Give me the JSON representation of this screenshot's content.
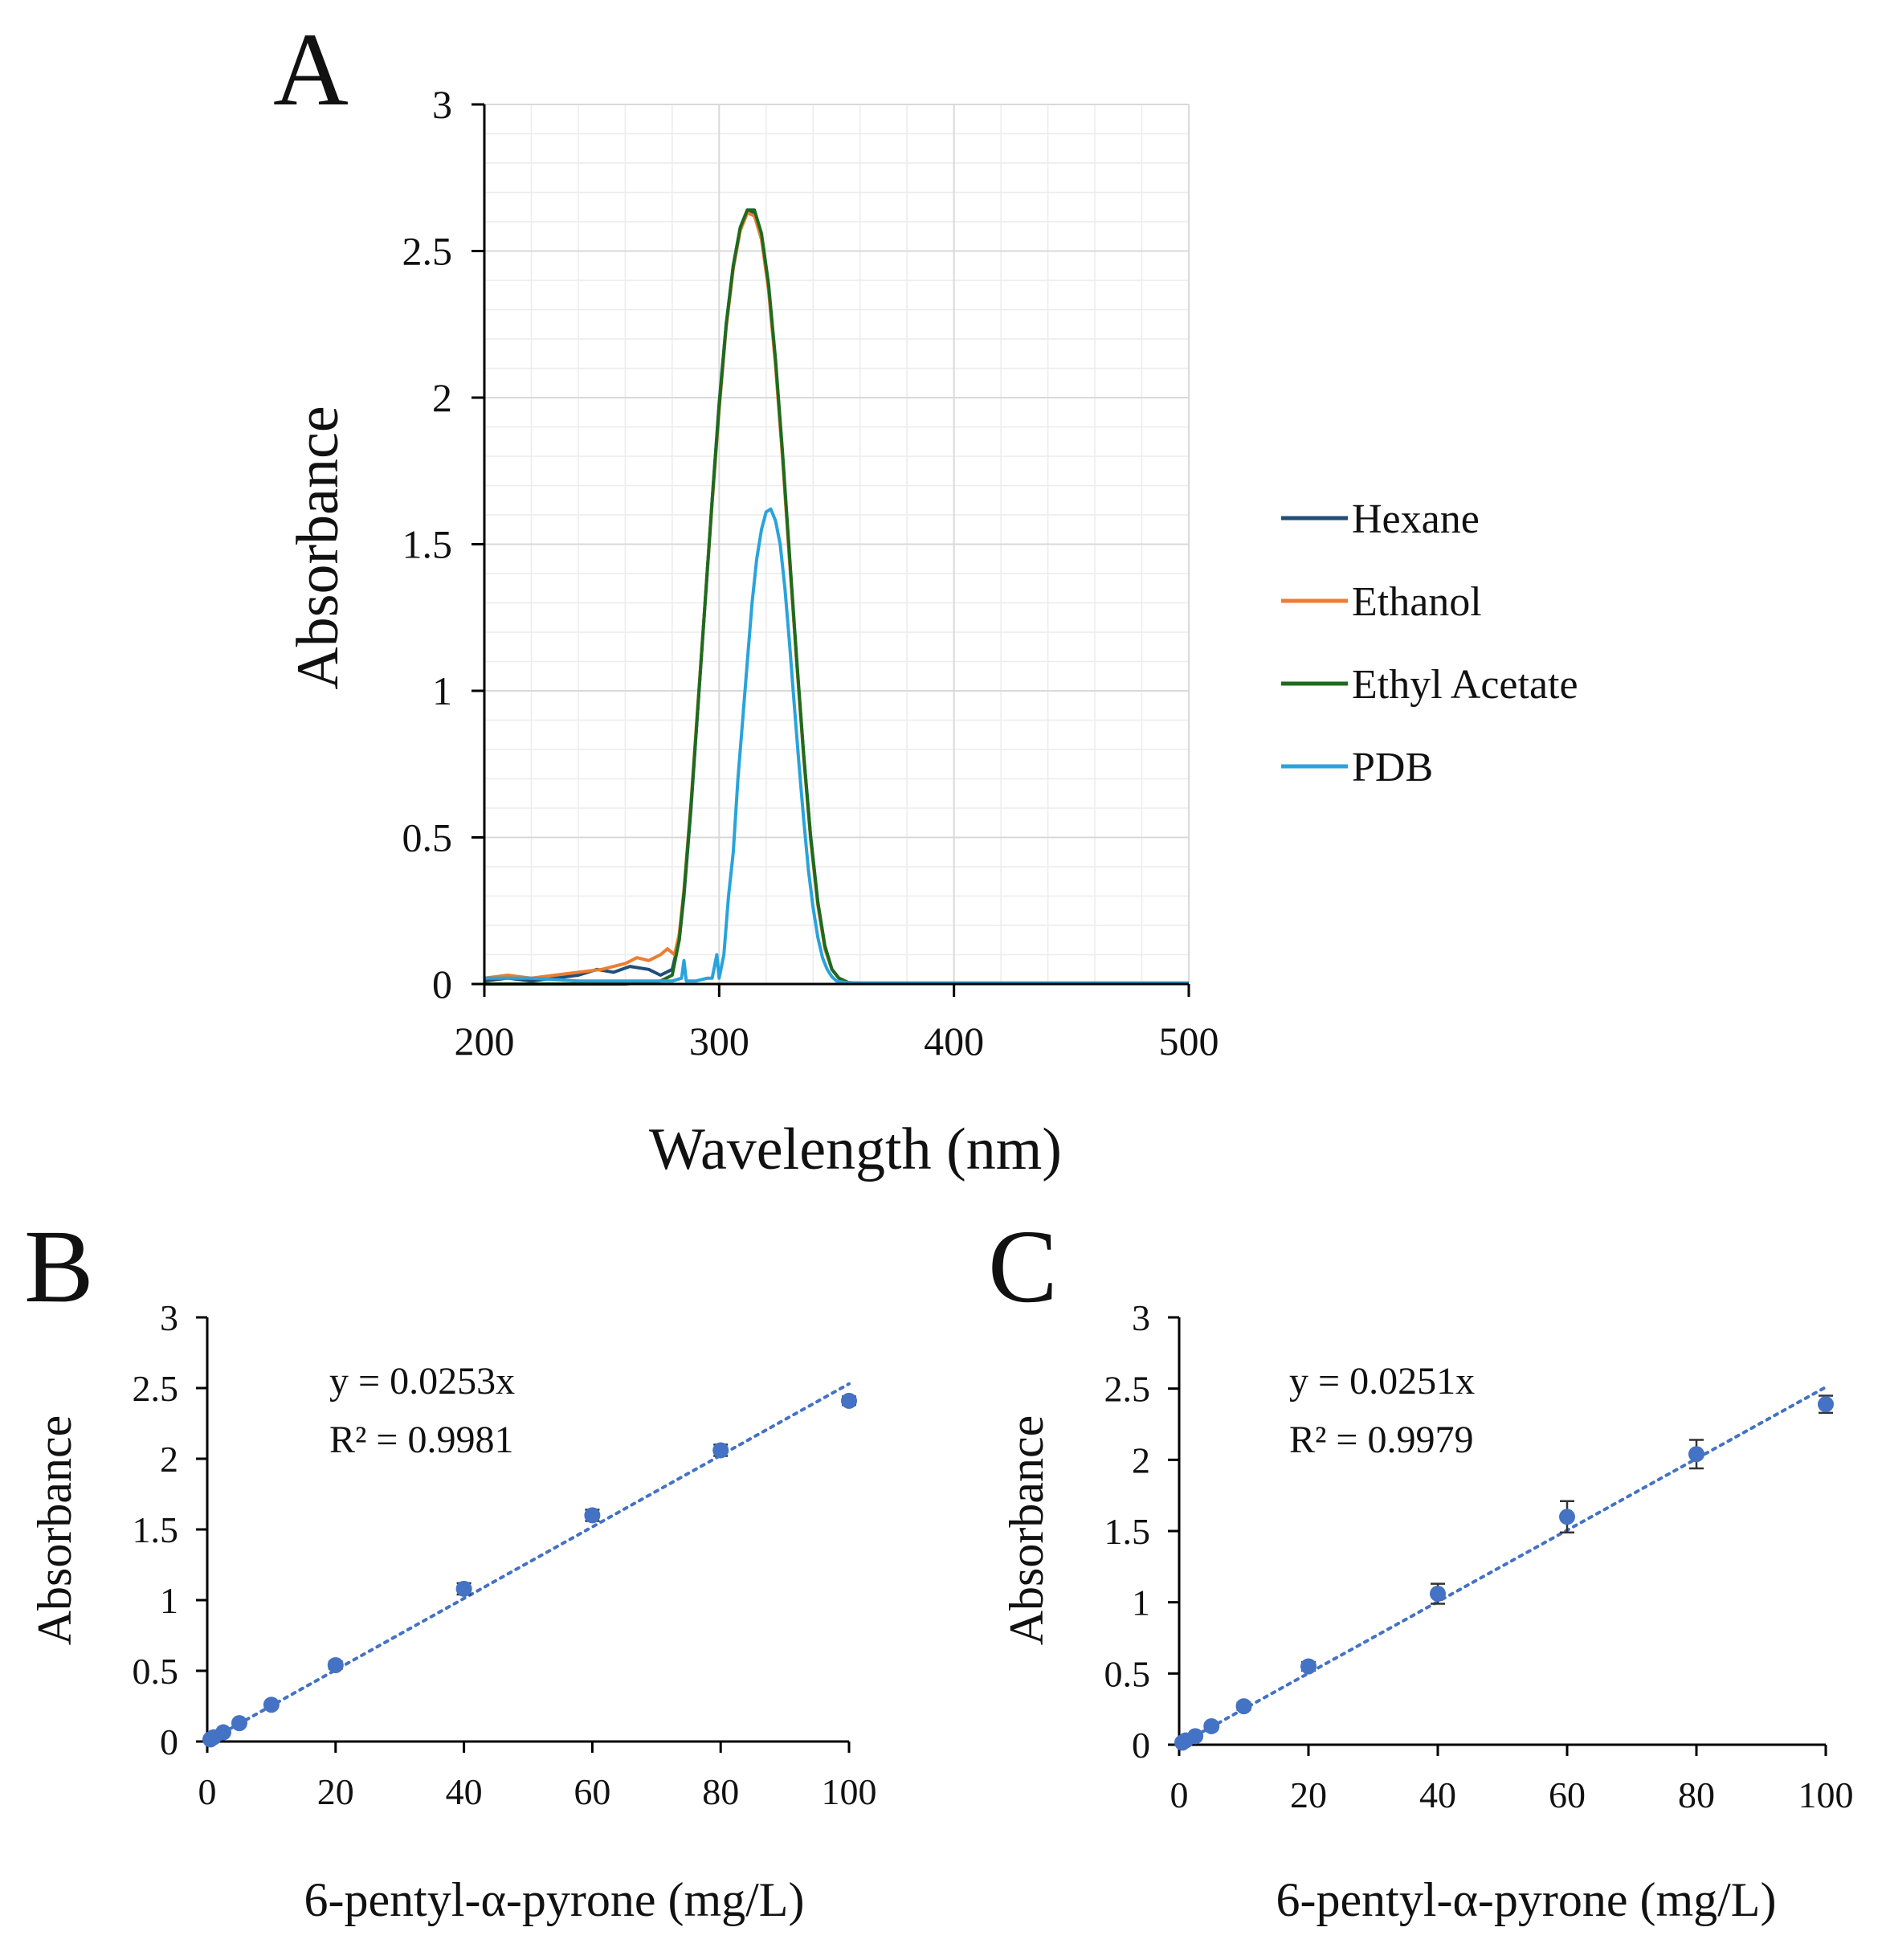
{
  "chart_data": [
    {
      "panel": "A",
      "type": "line",
      "title": "",
      "xlabel": "Wavelength (nm)",
      "ylabel": "Absorbance",
      "xlim": [
        200,
        500
      ],
      "ylim": [
        0,
        3
      ],
      "xticks": [
        "200",
        "300",
        "400",
        "500"
      ],
      "yticks": [
        "0",
        "0.5",
        "1",
        "1.5",
        "2",
        "2.5",
        "3"
      ],
      "grid": true,
      "legend_position": "right",
      "series": [
        {
          "name": "Hexane",
          "color": "#1f4e79",
          "x": [
            200,
            210,
            220,
            230,
            240,
            248,
            255,
            262,
            270,
            275,
            280,
            283,
            285,
            288,
            291,
            294,
            297,
            300,
            303,
            306,
            309,
            312,
            315,
            318,
            321,
            324,
            327,
            330,
            333,
            336,
            339,
            342,
            345,
            348,
            351,
            355,
            360,
            380,
            400,
            450,
            500
          ],
          "y": [
            0.01,
            0.02,
            0.01,
            0.02,
            0.03,
            0.05,
            0.04,
            0.06,
            0.05,
            0.03,
            0.05,
            0.15,
            0.3,
            0.6,
            0.95,
            1.3,
            1.65,
            1.98,
            2.25,
            2.45,
            2.58,
            2.64,
            2.63,
            2.55,
            2.38,
            2.12,
            1.8,
            1.45,
            1.1,
            0.78,
            0.5,
            0.28,
            0.13,
            0.05,
            0.02,
            0.005,
            0.003,
            0.003,
            0.003,
            0.003,
            0.003
          ]
        },
        {
          "name": "Ethanol",
          "color": "#ed7d31",
          "x": [
            200,
            210,
            220,
            230,
            240,
            250,
            260,
            265,
            270,
            275,
            278,
            281,
            283,
            285,
            288,
            291,
            294,
            297,
            300,
            303,
            306,
            309,
            312,
            315,
            318,
            321,
            324,
            327,
            330,
            333,
            336,
            339,
            342,
            345,
            348,
            351,
            355,
            360,
            380,
            400,
            450,
            500
          ],
          "y": [
            0.02,
            0.03,
            0.02,
            0.03,
            0.04,
            0.05,
            0.07,
            0.09,
            0.08,
            0.1,
            0.12,
            0.1,
            0.17,
            0.32,
            0.62,
            0.96,
            1.3,
            1.64,
            1.96,
            2.24,
            2.44,
            2.57,
            2.63,
            2.62,
            2.54,
            2.37,
            2.11,
            1.79,
            1.44,
            1.1,
            0.77,
            0.49,
            0.27,
            0.12,
            0.05,
            0.02,
            0.005,
            0.003,
            0.003,
            0.003,
            0.003,
            0.003
          ]
        },
        {
          "name": "Ethyl Acetate",
          "color": "#1e6b1e",
          "x": [
            200,
            220,
            240,
            260,
            275,
            280,
            283,
            285,
            288,
            291,
            294,
            297,
            300,
            303,
            306,
            309,
            312,
            315,
            318,
            321,
            324,
            327,
            330,
            333,
            336,
            339,
            342,
            345,
            348,
            351,
            355,
            360,
            380,
            400,
            450,
            500
          ],
          "y": [
            0.0,
            0.0,
            0.0,
            0.0,
            0.01,
            0.03,
            0.15,
            0.31,
            0.61,
            0.95,
            1.3,
            1.65,
            1.97,
            2.25,
            2.45,
            2.58,
            2.64,
            2.64,
            2.56,
            2.39,
            2.13,
            1.81,
            1.46,
            1.11,
            0.78,
            0.5,
            0.28,
            0.13,
            0.05,
            0.02,
            0.005,
            0.003,
            0.003,
            0.003,
            0.003,
            0.003
          ]
        },
        {
          "name": "PDB",
          "color": "#29a3db",
          "x": [
            200,
            220,
            240,
            260,
            280,
            284,
            285,
            286,
            290,
            295,
            297,
            298,
            299,
            300,
            302,
            304,
            306,
            308,
            310,
            312,
            314,
            316,
            318,
            320,
            322,
            324,
            326,
            328,
            330,
            332,
            334,
            336,
            338,
            340,
            342,
            344,
            346,
            348,
            350,
            354,
            360,
            380,
            400,
            450,
            500
          ],
          "y": [
            0.02,
            0.02,
            0.01,
            0.01,
            0.01,
            0.02,
            0.08,
            0.01,
            0.01,
            0.02,
            0.02,
            0.06,
            0.1,
            0.02,
            0.1,
            0.3,
            0.45,
            0.7,
            0.9,
            1.1,
            1.3,
            1.45,
            1.55,
            1.61,
            1.62,
            1.58,
            1.5,
            1.35,
            1.16,
            0.95,
            0.75,
            0.56,
            0.39,
            0.26,
            0.16,
            0.09,
            0.05,
            0.025,
            0.01,
            0.005,
            0.003,
            0.003,
            0.003,
            0.003,
            0.003
          ]
        }
      ]
    },
    {
      "panel": "B",
      "type": "scatter",
      "title": "",
      "xlabel": "6-pentyl-α-pyrone (mg/L)",
      "ylabel": "Absorbance",
      "xlim": [
        0,
        100
      ],
      "ylim": [
        0,
        3
      ],
      "xticks": [
        "0",
        "20",
        "40",
        "60",
        "80",
        "100"
      ],
      "yticks": [
        "0",
        "0.5",
        "1",
        "1.5",
        "2",
        "2.5",
        "3"
      ],
      "grid": false,
      "equation": "y = 0.0253x",
      "r_squared": "R² = 0.9981",
      "slope": 0.0253,
      "marker_color": "#4472c4",
      "points": {
        "x": [
          0.5,
          1,
          2.5,
          5,
          10,
          20,
          40,
          60,
          80,
          100
        ],
        "y": [
          0.015,
          0.03,
          0.065,
          0.13,
          0.26,
          0.54,
          1.08,
          1.6,
          2.06,
          2.41
        ],
        "err": [
          0.01,
          0.01,
          0.01,
          0.015,
          0.02,
          0.025,
          0.04,
          0.04,
          0.04,
          0.03
        ]
      }
    },
    {
      "panel": "C",
      "type": "scatter",
      "title": "",
      "xlabel": "6-pentyl-α-pyrone (mg/L)",
      "ylabel": "Absorbance",
      "xlim": [
        0,
        100
      ],
      "ylim": [
        0,
        3
      ],
      "xticks": [
        "0",
        "20",
        "40",
        "60",
        "80",
        "100"
      ],
      "yticks": [
        "0",
        "0.5",
        "1",
        "1.5",
        "2",
        "2.5",
        "3"
      ],
      "grid": false,
      "equation": "y = 0.0251x",
      "r_squared": "R² = 0.9979",
      "slope": 0.0251,
      "marker_color": "#4472c4",
      "points": {
        "x": [
          0.5,
          1,
          2.5,
          5,
          10,
          20,
          40,
          60,
          80,
          100
        ],
        "y": [
          0.015,
          0.03,
          0.06,
          0.13,
          0.27,
          0.55,
          1.06,
          1.6,
          2.04,
          2.39
        ],
        "err": [
          0.01,
          0.01,
          0.01,
          0.02,
          0.025,
          0.03,
          0.07,
          0.11,
          0.1,
          0.06
        ]
      }
    }
  ],
  "labels": {
    "panel_a": "A",
    "panel_b": "B",
    "panel_c": "C"
  }
}
